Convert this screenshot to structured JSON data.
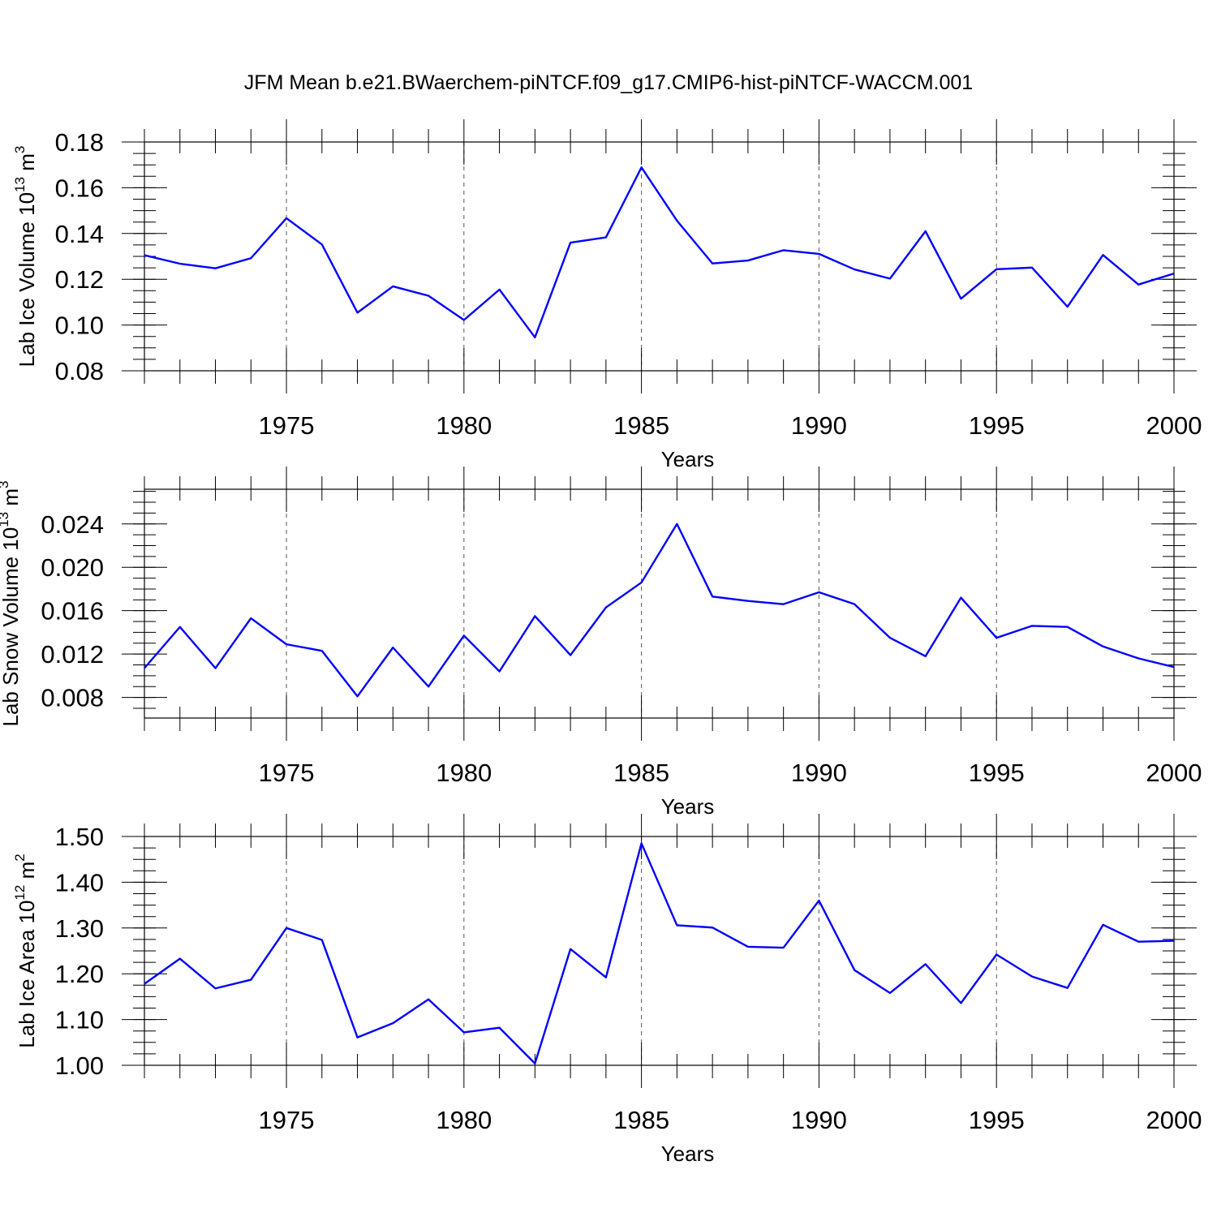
{
  "title": "JFM Mean b.e21.BWaerchem-piNTCF.f09_g17.CMIP6-hist-piNTCF-WACCM.001",
  "colors": {
    "line": "#0000ff",
    "axis": "#000000",
    "grid": "#555555"
  },
  "chart_data": [
    {
      "type": "line",
      "ylabel": {
        "base": "Lab Ice Volume 10",
        "exp": "13",
        "unit": " m",
        "unit_exp": "3"
      },
      "xlabel": "Years",
      "xlim": [
        1971,
        2000
      ],
      "ylim": [
        0.08,
        0.18
      ],
      "ytick_values": [
        0.08,
        0.1,
        0.12,
        0.14,
        0.16,
        0.18
      ],
      "ytick_labels": [
        "0.08",
        "0.10",
        "0.12",
        "0.14",
        "0.16",
        "0.18"
      ],
      "yminor_step": 0.005,
      "xtick_values": [
        1975,
        1980,
        1985,
        1990,
        1995,
        2000
      ],
      "xtick_labels": [
        "1975",
        "1980",
        "1985",
        "1990",
        "1995",
        "2000"
      ],
      "grid": "vertical dashed at labeled years",
      "x": [
        1971,
        1972,
        1973,
        1974,
        1975,
        1976,
        1977,
        1978,
        1979,
        1980,
        1981,
        1982,
        1983,
        1984,
        1985,
        1986,
        1987,
        1988,
        1989,
        1990,
        1991,
        1992,
        1993,
        1994,
        1995,
        1996,
        1997,
        1998,
        1999,
        2000
      ],
      "y": [
        0.1305,
        0.1268,
        0.1248,
        0.1292,
        0.1467,
        0.1352,
        0.1054,
        0.1169,
        0.1128,
        0.1022,
        0.1155,
        0.0946,
        0.136,
        0.1383,
        0.1689,
        0.1456,
        0.1269,
        0.1282,
        0.1327,
        0.1311,
        0.1243,
        0.1203,
        0.141,
        0.1115,
        0.1244,
        0.1251,
        0.108,
        0.1306,
        0.1177,
        0.1225
      ]
    },
    {
      "type": "line",
      "ylabel": {
        "base": "Lab Snow Volume 10",
        "exp": "13",
        "unit": " m",
        "unit_exp": "3"
      },
      "xlabel": "Years",
      "xlim": [
        1971,
        2000
      ],
      "ylim": [
        0.0061,
        0.0272
      ],
      "ytick_values": [
        0.008,
        0.012,
        0.016,
        0.02,
        0.024
      ],
      "ytick_labels": [
        "0.008",
        "0.012",
        "0.016",
        "0.020",
        "0.024"
      ],
      "yminor_step": 0.001,
      "xtick_values": [
        1975,
        1980,
        1985,
        1990,
        1995,
        2000
      ],
      "xtick_labels": [
        "1975",
        "1980",
        "1985",
        "1990",
        "1995",
        "2000"
      ],
      "grid": "vertical dashed at labeled years",
      "x": [
        1971,
        1972,
        1973,
        1974,
        1975,
        1976,
        1977,
        1978,
        1979,
        1980,
        1981,
        1982,
        1983,
        1984,
        1985,
        1986,
        1987,
        1988,
        1989,
        1990,
        1991,
        1992,
        1993,
        1994,
        1995,
        1996,
        1997,
        1998,
        1999,
        2000
      ],
      "y": [
        0.0107,
        0.0145,
        0.0107,
        0.0153,
        0.0129,
        0.0123,
        0.0081,
        0.0126,
        0.009,
        0.0137,
        0.0104,
        0.0155,
        0.0119,
        0.0163,
        0.0186,
        0.024,
        0.0173,
        0.0169,
        0.0166,
        0.0177,
        0.0166,
        0.0135,
        0.0118,
        0.0172,
        0.0135,
        0.0146,
        0.0145,
        0.0127,
        0.0116,
        0.0108
      ]
    },
    {
      "type": "line",
      "ylabel": {
        "base": "Lab Ice Area 10",
        "exp": "12",
        "unit": " m",
        "unit_exp": "2"
      },
      "xlabel": "Years",
      "xlim": [
        1971,
        2000
      ],
      "ylim": [
        1.0,
        1.5
      ],
      "ytick_values": [
        1.0,
        1.1,
        1.2,
        1.3,
        1.4,
        1.5
      ],
      "ytick_labels": [
        "1.00",
        "1.10",
        "1.20",
        "1.30",
        "1.40",
        "1.50"
      ],
      "yminor_step": 0.025,
      "xtick_values": [
        1975,
        1980,
        1985,
        1990,
        1995,
        2000
      ],
      "xtick_labels": [
        "1975",
        "1980",
        "1985",
        "1990",
        "1995",
        "2000"
      ],
      "grid": "vertical dashed at labeled years",
      "x": [
        1971,
        1972,
        1973,
        1974,
        1975,
        1976,
        1977,
        1978,
        1979,
        1980,
        1981,
        1982,
        1983,
        1984,
        1985,
        1986,
        1987,
        1988,
        1989,
        1990,
        1991,
        1992,
        1993,
        1994,
        1995,
        1996,
        1997,
        1998,
        1999,
        2000
      ],
      "y": [
        1.178,
        1.233,
        1.168,
        1.187,
        1.3,
        1.274,
        1.061,
        1.092,
        1.144,
        1.072,
        1.082,
        1.004,
        1.254,
        1.192,
        1.485,
        1.306,
        1.301,
        1.259,
        1.257,
        1.36,
        1.208,
        1.158,
        1.221,
        1.136,
        1.242,
        1.194,
        1.169,
        1.307,
        1.27,
        1.272
      ]
    }
  ]
}
